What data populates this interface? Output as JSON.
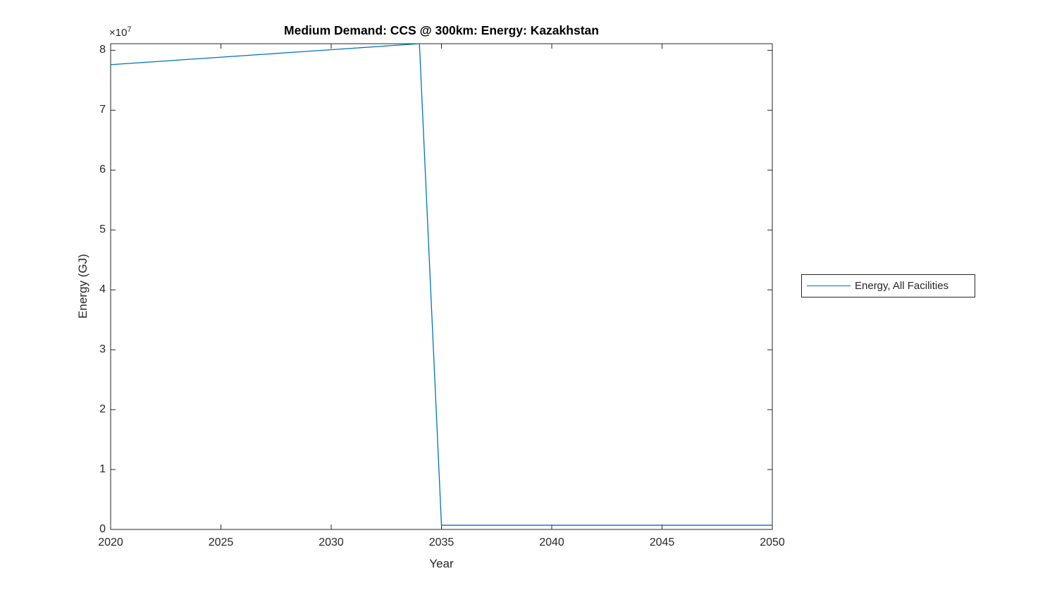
{
  "figure": {
    "y_exponent": {
      "base": "×10",
      "power": "7"
    }
  },
  "chart_data": {
    "type": "line",
    "title": "Medium Demand: CCS @ 300km: Energy: Kazakhstan",
    "xlabel": "Year",
    "ylabel": "Energy (GJ)",
    "xlim": [
      2020,
      2050
    ],
    "ylim": [
      0,
      81100000
    ],
    "xticks": [
      2020,
      2025,
      2030,
      2035,
      2040,
      2045,
      2050
    ],
    "xtick_labels": [
      "2020",
      "2025",
      "2030",
      "2035",
      "2040",
      "2045",
      "2050"
    ],
    "yticks": [
      0,
      10000000,
      20000000,
      30000000,
      40000000,
      50000000,
      60000000,
      70000000,
      80000000
    ],
    "ytick_labels": [
      "0",
      "1",
      "2",
      "3",
      "4",
      "5",
      "6",
      "7",
      "8"
    ],
    "grid": false,
    "legend_position": "right-outside",
    "colors": {
      "line": "#0072BD",
      "axis": "#262626",
      "background": "#ffffff"
    },
    "series": [
      {
        "name": "Energy, All Facilities",
        "color": "#0072BD",
        "x": [
          2020,
          2021,
          2022,
          2023,
          2024,
          2025,
          2026,
          2027,
          2028,
          2029,
          2030,
          2031,
          2032,
          2033,
          2034,
          2035,
          2036,
          2037,
          2038,
          2039,
          2040,
          2041,
          2042,
          2043,
          2044,
          2045,
          2046,
          2047,
          2048,
          2049,
          2050
        ],
        "y": [
          77600000,
          77850000,
          78100000,
          78350000,
          78600000,
          78850000,
          79100000,
          79350000,
          79600000,
          79850000,
          80100000,
          80350000,
          80600000,
          80850000,
          81100000,
          700000,
          700000,
          700000,
          700000,
          700000,
          700000,
          700000,
          700000,
          700000,
          700000,
          700000,
          700000,
          700000,
          700000,
          700000,
          700000
        ]
      }
    ]
  }
}
